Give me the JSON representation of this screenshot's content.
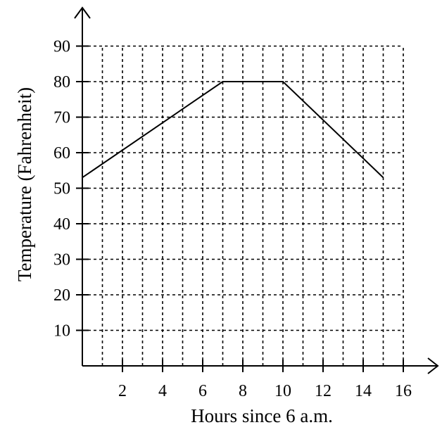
{
  "chart_data": {
    "type": "line",
    "title": "",
    "xlabel": "Hours since 6 a.m.",
    "ylabel": "Temperature (Fahrenheit)",
    "xlim": [
      0,
      16
    ],
    "ylim": [
      0,
      90
    ],
    "x_ticks": [
      2,
      4,
      6,
      8,
      10,
      12,
      14,
      16
    ],
    "y_ticks": [
      10,
      20,
      30,
      40,
      50,
      60,
      70,
      80,
      90
    ],
    "grid": true,
    "legend": "none",
    "series": [
      {
        "x": [
          0,
          7,
          10,
          15
        ],
        "y": [
          53,
          80,
          80,
          53
        ]
      }
    ]
  }
}
